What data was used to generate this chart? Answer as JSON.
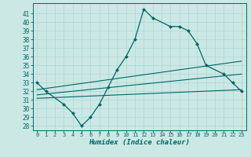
{
  "xlabel": "Humidex (Indice chaleur)",
  "bg_color": "#cce8e4",
  "line_color": "#006666",
  "grid_color": "#aad8d4",
  "xlim": [
    -0.5,
    23.5
  ],
  "ylim": [
    27.5,
    42.2
  ],
  "xticks": [
    0,
    1,
    2,
    3,
    4,
    5,
    6,
    7,
    8,
    9,
    10,
    11,
    12,
    13,
    14,
    15,
    16,
    17,
    18,
    19,
    20,
    21,
    22,
    23
  ],
  "yticks": [
    28,
    29,
    30,
    31,
    32,
    33,
    34,
    35,
    36,
    37,
    38,
    39,
    40,
    41
  ],
  "main_x": [
    0,
    1,
    3,
    4,
    5,
    6,
    7,
    8,
    9,
    10,
    11,
    12,
    13,
    15,
    16,
    17,
    18,
    19,
    21,
    22,
    23
  ],
  "main_y": [
    33.0,
    32.0,
    30.5,
    29.5,
    28.0,
    29.0,
    30.5,
    32.5,
    34.5,
    36.0,
    38.0,
    41.5,
    40.5,
    39.5,
    39.5,
    39.0,
    37.5,
    35.0,
    34.0,
    33.0,
    32.0
  ],
  "trend1_x": [
    0,
    23
  ],
  "trend1_y": [
    32.2,
    35.5
  ],
  "trend2_x": [
    0,
    23
  ],
  "trend2_y": [
    31.6,
    34.0
  ],
  "trend3_x": [
    0,
    23
  ],
  "trend3_y": [
    31.2,
    32.2
  ]
}
